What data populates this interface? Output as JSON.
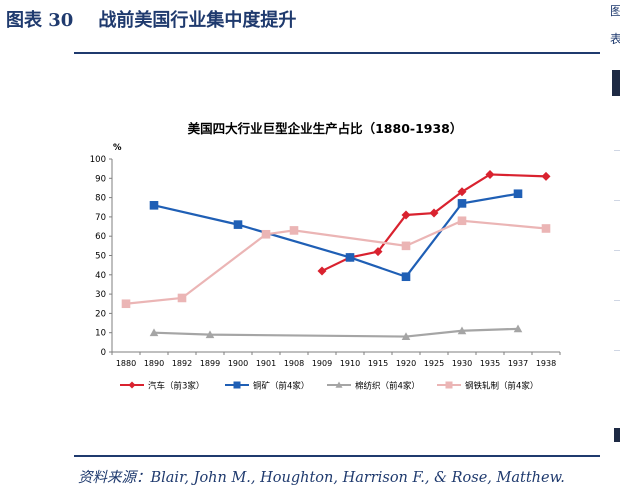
{
  "figure": {
    "title": "图表 30    战前美国行业集中度提升",
    "source": "资料来源：Blair, John M., Houghton, Harrison F., & Rose, Matthew."
  },
  "chart_data": {
    "type": "line",
    "title": "美国四大行业巨型企业生产占比（1880-1938）",
    "ylabel": "%",
    "xlabel": "",
    "ylim": [
      0,
      100
    ],
    "yticks": [
      0,
      10,
      20,
      30,
      40,
      50,
      60,
      70,
      80,
      90,
      100
    ],
    "categories": [
      "1880",
      "1890",
      "1892",
      "1899",
      "1900",
      "1901",
      "1908",
      "1909",
      "1910",
      "1915",
      "1920",
      "1925",
      "1930",
      "1935",
      "1937",
      "1938"
    ],
    "grid": false,
    "legend_position": "bottom",
    "series": [
      {
        "name": "汽车（前3家）",
        "color": "#d9222f",
        "marker": "diamond",
        "values": [
          null,
          null,
          null,
          null,
          null,
          null,
          null,
          42,
          49,
          52,
          71,
          72,
          83,
          92,
          null,
          91
        ]
      },
      {
        "name": "铜矿（前4家）",
        "color": "#1f5fb5",
        "marker": "square",
        "values": [
          null,
          76,
          null,
          null,
          66,
          null,
          null,
          null,
          49,
          null,
          39,
          null,
          77,
          null,
          82,
          null
        ]
      },
      {
        "name": "棉纺织（前4家）",
        "color": "#a5a5a5",
        "marker": "triangle",
        "values": [
          null,
          10,
          null,
          9,
          null,
          null,
          null,
          null,
          null,
          null,
          8,
          null,
          11,
          null,
          12,
          null
        ]
      },
      {
        "name": "钢铁轧制（前4家）",
        "color": "#ebb5b5",
        "marker": "square",
        "values": [
          25,
          null,
          28,
          null,
          null,
          61,
          63,
          null,
          null,
          null,
          55,
          null,
          68,
          null,
          null,
          64
        ]
      }
    ]
  },
  "side": {
    "top_text": "图",
    "mid_text": "表"
  }
}
